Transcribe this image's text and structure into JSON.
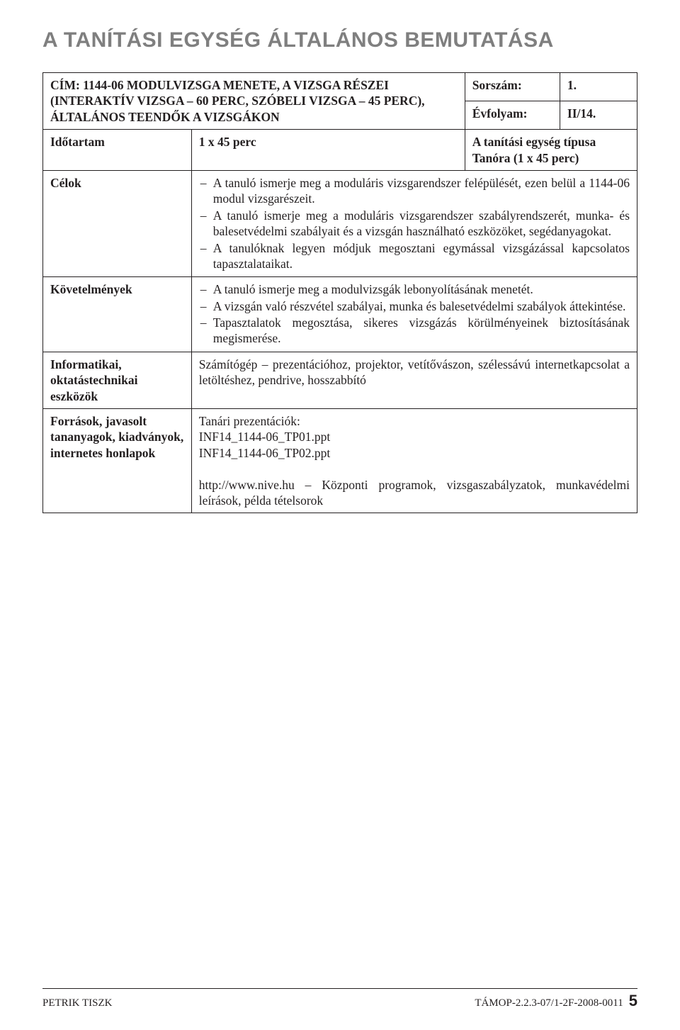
{
  "title": "A tanítási egység általános bemutatása",
  "header": {
    "cim_label": "CÍM:",
    "cim_text": "1144-06 MODULVIZSGA MENETE, A VIZSGA RÉSZEI (INTERAKTÍV VIZSGA – 60 PERC, SZÓBELI VIZSGA – 45 PERC), ÁLTALÁNOS TEENDŐK A VIZSGÁKON",
    "sorszam_label": "Sorszám:",
    "sorszam_value": "1.",
    "evfolyam_label": "Évfolyam:",
    "evfolyam_value": "II/14."
  },
  "idotartam": {
    "label": "Időtartam",
    "value": "1 x 45 perc",
    "tipus_label": "A tanítási egység típusa",
    "tipus_value": "Tanóra (1 x 45 perc)"
  },
  "celok": {
    "label": "Célok",
    "items": [
      "A tanuló ismerje meg a moduláris vizsgarendszer felépülését, ezen belül a 1144-06 modul vizsgarészeit.",
      "A tanuló ismerje meg a moduláris vizsgarendszer szabályrendszerét, munka- és balesetvédelmi szabályait és a vizsgán használható eszközöket, segédanyagokat.",
      "A tanulóknak legyen módjuk megosztani egymással vizsgázással kapcsolatos tapasztalataikat."
    ]
  },
  "kovetelmenyek": {
    "label": "Követelmények",
    "items": [
      "A tanuló ismerje meg a modulvizsgák lebonyolításának menetét.",
      "A vizsgán való részvétel szabályai, munka és balesetvédelmi szabályok áttekintése.",
      "Tapasztalatok megosztása, sikeres vizsgázás körülményeinek biztosításának megismerése."
    ]
  },
  "informatikai": {
    "label": "Informatikai, oktatástechnikai eszközök",
    "text": "Számítógép – prezentációhoz, projektor, vetítővászon, szélessávú internetkapcsolat a letöltéshez, pendrive, hosszabbító"
  },
  "forrasok": {
    "label": "Források, javasolt tananyagok, kiadványok, internetes honlapok",
    "line1": "Tanári prezentációk:",
    "line2": "INF14_1144-06_TP01.ppt",
    "line3": "INF14_1144-06_TP02.ppt",
    "line4": "http://www.nive.hu – Központi programok, vizsgaszabályzatok, munkavédelmi leírások, példa tételsorok"
  },
  "footer": {
    "left": "PETRIK TISZK",
    "right": "TÁMOP-2.2.3-07/1-2F-2008-0011",
    "page": "5"
  },
  "colors": {
    "title": "#7f7f7f",
    "text": "#231f20",
    "border": "#231f20",
    "background": "#ffffff"
  },
  "typography": {
    "title_fontsize": 30,
    "body_fontsize": 17.5,
    "footer_fontsize": 15,
    "pagenum_fontsize": 22
  }
}
